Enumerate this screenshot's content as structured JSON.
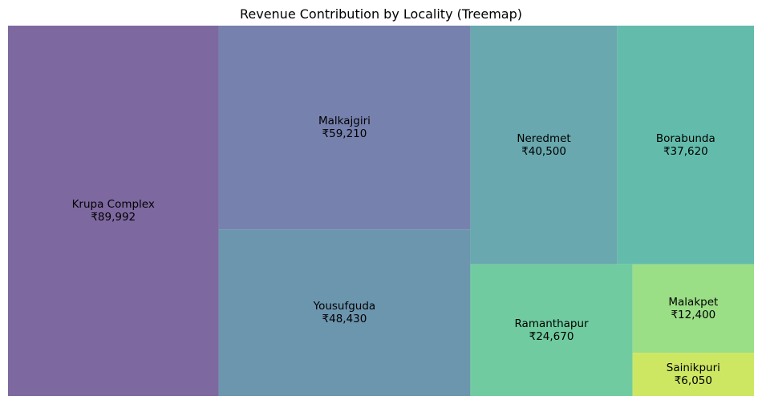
{
  "chart_data": {
    "type": "treemap",
    "title": "Revenue Contribution by Locality (Treemap)",
    "currency_symbol": "₹",
    "items": [
      {
        "name": "Krupa Complex",
        "value": 89992,
        "value_label": "₹89,992",
        "color": "#7e68a0"
      },
      {
        "name": "Malkajgiri",
        "value": 59210,
        "value_label": "₹59,210",
        "color": "#7781ae"
      },
      {
        "name": "Yousufguda",
        "value": 48430,
        "value_label": "₹48,430",
        "color": "#6c95ae"
      },
      {
        "name": "Neredmet",
        "value": 40500,
        "value_label": "₹40,500",
        "color": "#68a8ae"
      },
      {
        "name": "Borabunda",
        "value": 37620,
        "value_label": "₹37,620",
        "color": "#63bcab"
      },
      {
        "name": "Ramanthapur",
        "value": 24670,
        "value_label": "₹24,670",
        "color": "#70cca0"
      },
      {
        "name": "Malakpet",
        "value": 12400,
        "value_label": "₹12,400",
        "color": "#9ade86"
      },
      {
        "name": "Sainikpuri",
        "value": 6050,
        "value_label": "₹6,050",
        "color": "#cde763"
      }
    ],
    "grid": false,
    "legend": "none"
  }
}
